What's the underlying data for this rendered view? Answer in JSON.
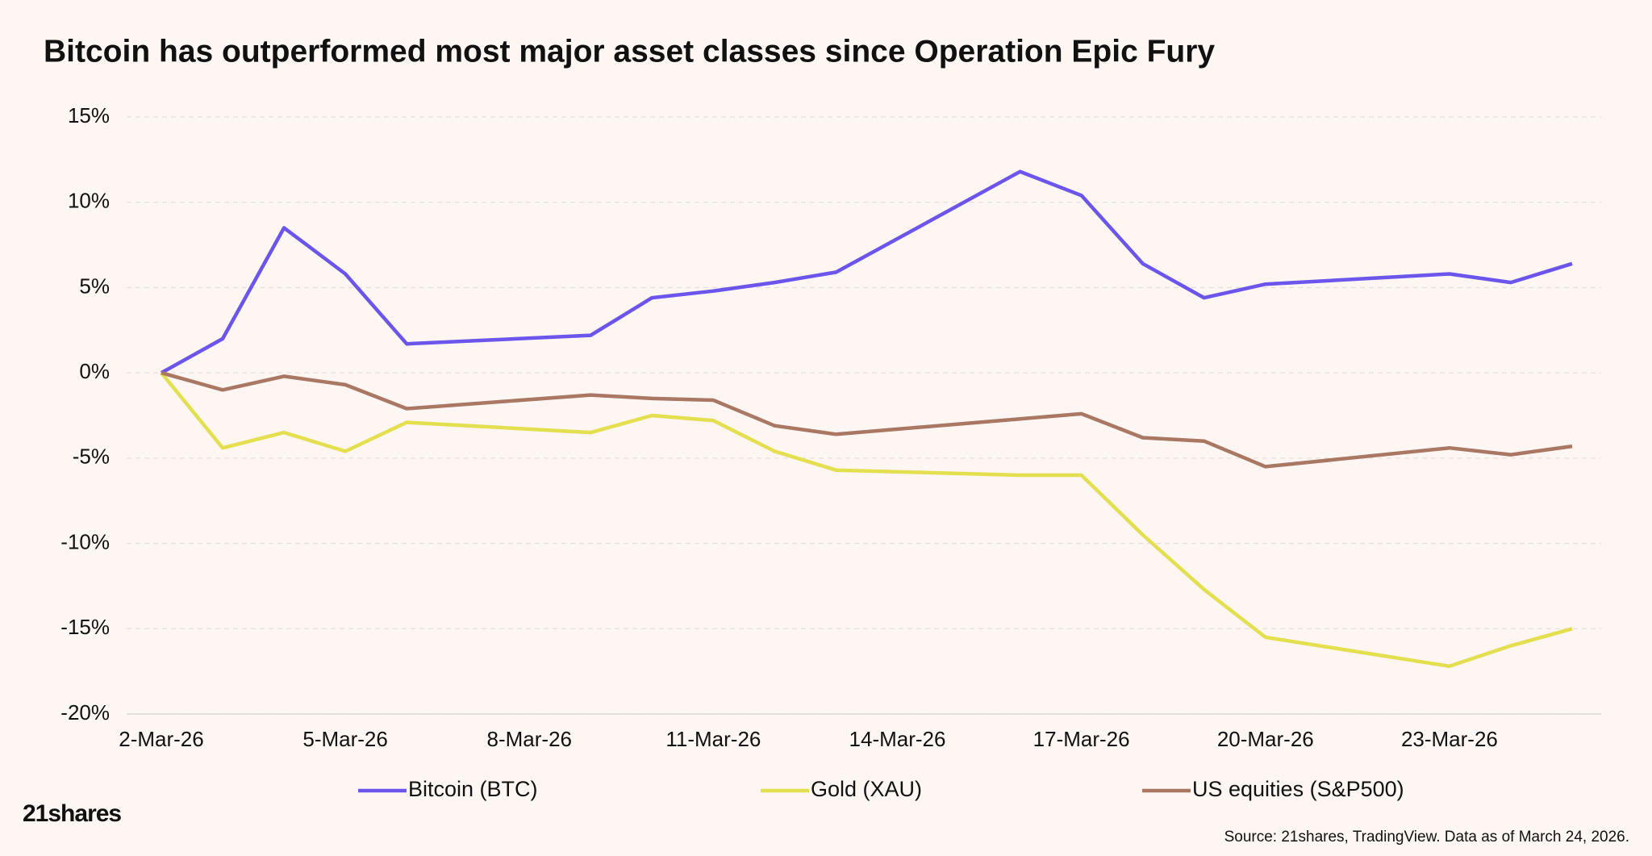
{
  "chart_data": {
    "type": "line",
    "title": "Bitcoin has outperformed most major asset classes since Operation Epic Fury",
    "x": [
      "2-Mar-26",
      "3-Mar-26",
      "4-Mar-26",
      "5-Mar-26",
      "6-Mar-26",
      "9-Mar-26",
      "10-Mar-26",
      "11-Mar-26",
      "12-Mar-26",
      "13-Mar-26",
      "16-Mar-26",
      "17-Mar-26",
      "18-Mar-26",
      "19-Mar-26",
      "20-Mar-26",
      "23-Mar-26",
      "24-Mar-26",
      "25-Mar-26"
    ],
    "xticks": [
      "2-Mar-26",
      "5-Mar-26",
      "8-Mar-26",
      "11-Mar-26",
      "14-Mar-26",
      "17-Mar-26",
      "20-Mar-26",
      "23-Mar-26"
    ],
    "series": [
      {
        "name": "Bitcoin (BTC)",
        "color": "#6c55ec",
        "values": [
          0,
          2.0,
          8.5,
          5.8,
          1.7,
          2.2,
          4.4,
          4.8,
          5.3,
          5.9,
          11.8,
          10.4,
          6.4,
          4.4,
          5.2,
          5.8,
          5.3,
          6.4
        ]
      },
      {
        "name": "Gold (XAU)",
        "color": "#e3df4f",
        "values": [
          0,
          -4.4,
          -3.5,
          -4.6,
          -2.9,
          -3.5,
          -2.5,
          -2.8,
          -4.6,
          -5.7,
          -6.0,
          -6.0,
          -9.5,
          -12.7,
          -15.5,
          -17.2,
          -16.0,
          -15.0
        ]
      },
      {
        "name": "US equities (S&P500)",
        "color": "#a97762",
        "values": [
          0,
          -1.0,
          -0.2,
          -0.7,
          -2.1,
          -1.3,
          -1.5,
          -1.6,
          -3.1,
          -3.6,
          -2.7,
          -2.4,
          -3.8,
          -4.0,
          -5.5,
          -4.4,
          -4.8,
          -4.3
        ]
      }
    ],
    "ylim": [
      -20,
      15
    ],
    "yticks": [
      {
        "value": -20,
        "label": "-20%"
      },
      {
        "value": -15,
        "label": "-15%"
      },
      {
        "value": -10,
        "label": "-10%"
      },
      {
        "value": -5,
        "label": "-5%"
      },
      {
        "value": 0,
        "label": "0%"
      },
      {
        "value": 5,
        "label": "5%"
      },
      {
        "value": 10,
        "label": "10%"
      },
      {
        "value": 15,
        "label": "15%"
      }
    ],
    "grid": true,
    "legend": "bottom",
    "logo": "21shares",
    "source": "Source: 21shares, TradingView. Data as of March 24, 2026."
  }
}
